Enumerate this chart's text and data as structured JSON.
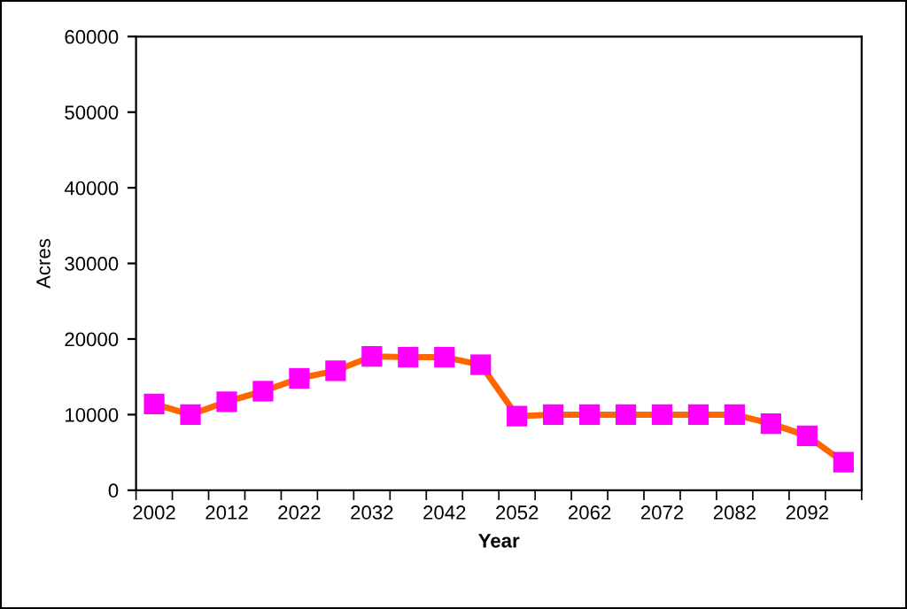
{
  "chart_data": {
    "type": "line",
    "xlabel": "Year",
    "ylabel": "Acres",
    "categories": [
      "2002",
      null,
      "2012",
      null,
      "2022",
      null,
      "2032",
      null,
      "2042",
      null,
      "2052",
      null,
      "2062",
      null,
      "2072",
      null,
      "2082",
      null,
      "2092",
      null
    ],
    "series": [
      {
        "color": "#ff6600",
        "colors": [
          "#ff00ff",
          "#ff00ff",
          "#ff00ff",
          "#ff00ff",
          "#ff00ff",
          "#ff00ff",
          "#ff00ff",
          "#ff00ff",
          "#ff00ff",
          "#ff00ff",
          "#ff00ff",
          "#ff00ff",
          "#ff00ff",
          "#ff00ff",
          "#ff00ff",
          "#ff00ff",
          "#ff00ff",
          "#ff00ff",
          "#ff00ff",
          "#ff00ff"
        ],
        "values": [
          11400,
          10000,
          11700,
          13100,
          14800,
          15800,
          17700,
          17600,
          17600,
          16600,
          9800,
          10000,
          10000,
          10000,
          10000,
          10000,
          10000,
          8800,
          7200,
          3700
        ]
      }
    ],
    "marker": "square",
    "line_style": "solid",
    "ylim": [
      0,
      60000
    ],
    "yticks": [
      0,
      10000,
      20000,
      30000,
      40000,
      50000,
      60000
    ],
    "grid": false,
    "legend": false
  }
}
